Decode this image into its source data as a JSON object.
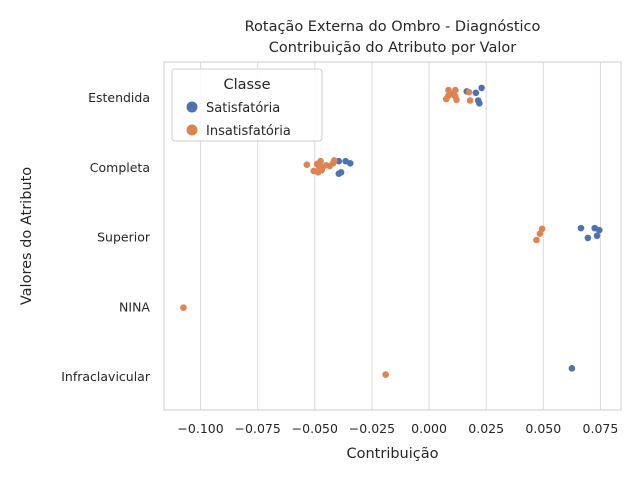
{
  "chart_data": {
    "type": "scatter",
    "title_lines": [
      "Rotação Externa do Ombro - Diagnóstico",
      "Contribuição do Atributo por Valor"
    ],
    "xlabel": "Contribuição",
    "ylabel": "Valores do Atributo",
    "xlim": [
      -0.116,
      0.084
    ],
    "x_ticks": [
      -0.1,
      -0.075,
      -0.05,
      -0.025,
      0.0,
      0.025,
      0.05,
      0.075
    ],
    "x_tick_labels": [
      "−0.100",
      "−0.075",
      "−0.050",
      "−0.025",
      "0.000",
      "0.025",
      "0.050",
      "0.075"
    ],
    "categories": [
      "Estendida",
      "Completa",
      "Superior",
      "NINA",
      "Infraclavicular"
    ],
    "grid": true,
    "legend": {
      "title": "Classe",
      "placement": "top-left"
    },
    "series": [
      {
        "name": "Satisfatória",
        "color": "#4c72b0",
        "points": [
          {
            "category": "Estendida",
            "x": 0.0165,
            "offset": -0.08
          },
          {
            "category": "Estendida",
            "x": 0.0205,
            "offset": -0.06
          },
          {
            "category": "Estendida",
            "x": 0.023,
            "offset": -0.13
          },
          {
            "category": "Estendida",
            "x": 0.0215,
            "offset": 0.05
          },
          {
            "category": "Estendida",
            "x": 0.022,
            "offset": 0.09
          },
          {
            "category": "Completa",
            "x": -0.0395,
            "offset": -0.08
          },
          {
            "category": "Completa",
            "x": -0.0365,
            "offset": -0.08
          },
          {
            "category": "Completa",
            "x": -0.0345,
            "offset": -0.05
          },
          {
            "category": "Completa",
            "x": -0.0385,
            "offset": 0.08
          },
          {
            "category": "Completa",
            "x": -0.0395,
            "offset": 0.1
          },
          {
            "category": "Superior",
            "x": 0.0665,
            "offset": -0.12
          },
          {
            "category": "Superior",
            "x": 0.0725,
            "offset": -0.12
          },
          {
            "category": "Superior",
            "x": 0.0745,
            "offset": -0.09
          },
          {
            "category": "Superior",
            "x": 0.0735,
            "offset": -0.01
          },
          {
            "category": "Superior",
            "x": 0.0695,
            "offset": 0.02
          },
          {
            "category": "Infraclavicular",
            "x": 0.0625,
            "offset": -0.11
          }
        ]
      },
      {
        "name": "Insatisfatória",
        "color": "#dd8452",
        "points": [
          {
            "category": "Estendida",
            "x": 0.0085,
            "offset": -0.1
          },
          {
            "category": "Estendida",
            "x": 0.0115,
            "offset": -0.1
          },
          {
            "category": "Estendida",
            "x": 0.0175,
            "offset": -0.07
          },
          {
            "category": "Estendida",
            "x": 0.01,
            "offset": -0.04
          },
          {
            "category": "Estendida",
            "x": 0.0085,
            "offset": -0.02
          },
          {
            "category": "Estendida",
            "x": 0.0115,
            "offset": -0.01
          },
          {
            "category": "Estendida",
            "x": 0.0075,
            "offset": 0.03
          },
          {
            "category": "Estendida",
            "x": 0.012,
            "offset": 0.04
          },
          {
            "category": "Estendida",
            "x": 0.018,
            "offset": 0.05
          },
          {
            "category": "Completa",
            "x": -0.0535,
            "offset": -0.03
          },
          {
            "category": "Completa",
            "x": -0.0475,
            "offset": -0.08
          },
          {
            "category": "Completa",
            "x": -0.0415,
            "offset": -0.09
          },
          {
            "category": "Completa",
            "x": -0.042,
            "offset": -0.05
          },
          {
            "category": "Completa",
            "x": -0.049,
            "offset": -0.04
          },
          {
            "category": "Completa",
            "x": -0.045,
            "offset": -0.02
          },
          {
            "category": "Completa",
            "x": -0.0435,
            "offset": -0.01
          },
          {
            "category": "Completa",
            "x": -0.0465,
            "offset": 0.0
          },
          {
            "category": "Completa",
            "x": -0.048,
            "offset": 0.02
          },
          {
            "category": "Completa",
            "x": -0.0505,
            "offset": 0.06
          },
          {
            "category": "Completa",
            "x": -0.0485,
            "offset": 0.08
          },
          {
            "category": "Completa",
            "x": -0.047,
            "offset": 0.05
          },
          {
            "category": "Superior",
            "x": 0.0495,
            "offset": -0.11
          },
          {
            "category": "Superior",
            "x": 0.0485,
            "offset": -0.04
          },
          {
            "category": "Superior",
            "x": 0.047,
            "offset": 0.05
          },
          {
            "category": "NINA",
            "x": -0.1075,
            "offset": 0.02
          },
          {
            "category": "Infraclavicular",
            "x": -0.019,
            "offset": -0.02
          }
        ]
      }
    ]
  }
}
